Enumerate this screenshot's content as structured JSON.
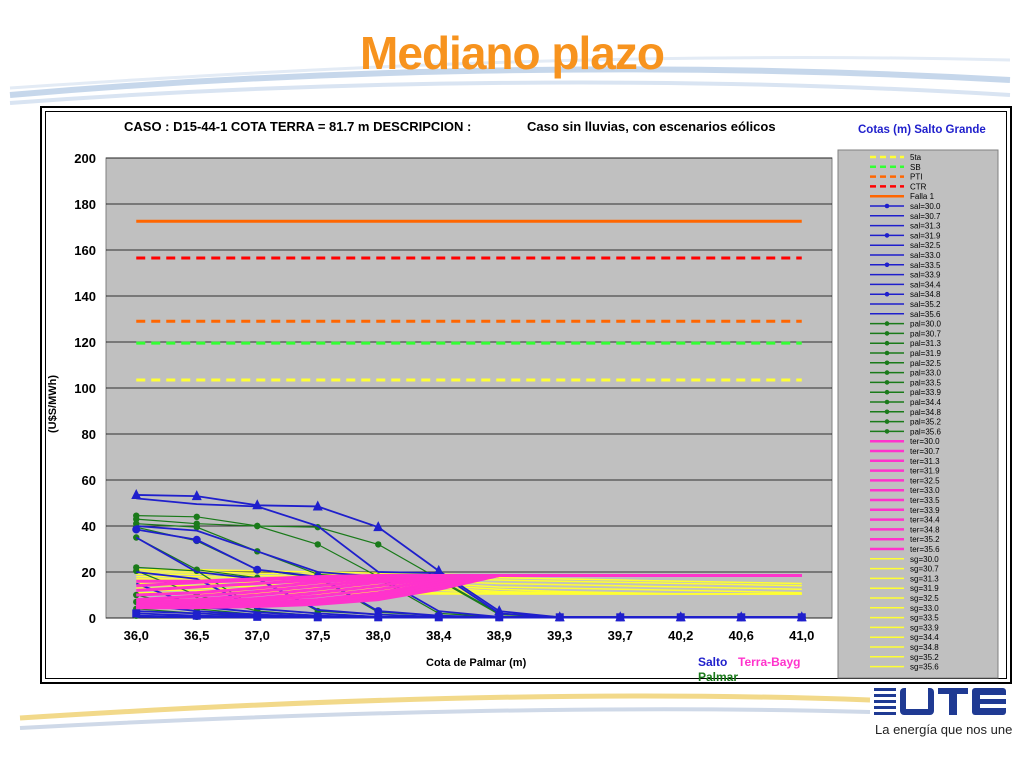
{
  "slide": {
    "title": "Mediano plazo",
    "tagline": "La energía que nos une",
    "logo_text": "UTE"
  },
  "colors": {
    "title": "#f7931e",
    "plot_bg": "#c0c0c0",
    "legend_bg": "#c0c0c0",
    "salto": "#1f1fcc",
    "palmar": "#1a7a1a",
    "terra": "#ff33cc",
    "sg": "#ffff33"
  },
  "chart_data": {
    "type": "line",
    "title_left": "CASO : D15-44-1 COTA TERRA = 81.7 m  DESCRIPCION :",
    "title_right": "Caso sin lluvias, con escenarios eólicos",
    "xlabel": "Cota de Palmar (m)",
    "ylabel": "(U$S/MWh)",
    "ylim": [
      0,
      200
    ],
    "yticks": [
      0,
      20,
      40,
      60,
      80,
      100,
      120,
      140,
      160,
      180,
      200
    ],
    "grid": true,
    "categories": [
      "36,0",
      "36,5",
      "37,0",
      "37,5",
      "38,0",
      "38,4",
      "38,9",
      "39,3",
      "39,7",
      "40,2",
      "40,6",
      "41,0"
    ],
    "legend_title": "Cotas (m) Salto Grande",
    "legend_position": "right",
    "footer_labels": {
      "salto": "Salto",
      "terra": "Terra-Bayg",
      "palmar": "Palmar"
    },
    "series": [
      {
        "name": "5ta",
        "group": "ref",
        "color": "#ffff33",
        "dash": true,
        "values": [
          103.5,
          103.5,
          103.5,
          103.5,
          103.5,
          103.5,
          103.5,
          103.5,
          103.5,
          103.5,
          103.5,
          103.5
        ]
      },
      {
        "name": "SB",
        "group": "ref",
        "color": "#33ff33",
        "dash": true,
        "values": [
          119.5,
          119.5,
          119.5,
          119.5,
          119.5,
          119.5,
          119.5,
          119.5,
          119.5,
          119.5,
          119.5,
          119.5
        ]
      },
      {
        "name": "PTI",
        "group": "ref",
        "color": "#ff6600",
        "dash": true,
        "values": [
          129,
          129,
          129,
          129,
          129,
          129,
          129,
          129,
          129,
          129,
          129,
          129
        ]
      },
      {
        "name": "CTR",
        "group": "ref",
        "color": "#ff0000",
        "dash": true,
        "values": [
          156.5,
          156.5,
          156.5,
          156.5,
          156.5,
          156.5,
          156.5,
          156.5,
          156.5,
          156.5,
          156.5,
          156.5
        ]
      },
      {
        "name": "Falla 1",
        "group": "ref",
        "color": "#ff6600",
        "dash": false,
        "values": [
          172.5,
          172.5,
          172.5,
          172.5,
          172.5,
          172.5,
          172.5,
          172.5,
          172.5,
          172.5,
          172.5,
          172.5
        ]
      },
      {
        "name": "sal=30.0",
        "group": "salto",
        "marker": "triangle",
        "values": [
          53.5,
          53,
          49,
          48.5,
          39.5,
          20.5,
          3,
          0.3,
          0.3,
          0.3,
          0.3,
          0.3
        ]
      },
      {
        "name": "sal=30.7",
        "group": "salto",
        "values": [
          52,
          49.5,
          48.5,
          40,
          20,
          19.5,
          2,
          0.3,
          0.3,
          0.3,
          0.3,
          0.3
        ]
      },
      {
        "name": "sal=31.3",
        "group": "salto",
        "values": [
          40,
          38,
          29,
          20,
          18,
          3,
          0.5,
          0.3,
          0.3,
          0.3,
          0.3,
          0.3
        ]
      },
      {
        "name": "sal=31.9",
        "group": "salto",
        "marker": "circle",
        "values": [
          38.5,
          34,
          21,
          18,
          3,
          1,
          0.3,
          0.3,
          0.3,
          0.3,
          0.3,
          0.3
        ]
      },
      {
        "name": "sal=32.5",
        "group": "salto",
        "values": [
          35,
          20,
          17,
          3.5,
          1.5,
          0.5,
          0.3,
          0.3,
          0.3,
          0.3,
          0.3,
          0.3
        ]
      },
      {
        "name": "sal=33.0",
        "group": "salto",
        "values": [
          20,
          17,
          4,
          2,
          0.5,
          0.3,
          0.3,
          0.3,
          0.3,
          0.3,
          0.3,
          0.3
        ]
      },
      {
        "name": "sal=33.5",
        "group": "salto",
        "marker": "plus",
        "values": [
          15,
          5,
          2.5,
          1,
          0.3,
          0.3,
          0.3,
          0.3,
          0.3,
          0.3,
          0.3,
          0.3
        ]
      },
      {
        "name": "sal=33.9",
        "group": "salto",
        "values": [
          6,
          3,
          1.5,
          0.5,
          0.3,
          0.3,
          0.3,
          0.3,
          0.3,
          0.3,
          0.3,
          0.3
        ]
      },
      {
        "name": "sal=34.4",
        "group": "salto",
        "values": [
          3,
          2,
          1,
          0.3,
          0.3,
          0.3,
          0.3,
          0.3,
          0.3,
          0.3,
          0.3,
          0.3
        ]
      },
      {
        "name": "sal=34.8",
        "group": "salto",
        "marker": "square",
        "values": [
          2,
          1,
          0.5,
          0.3,
          0.3,
          0.3,
          0.3,
          0.3,
          0.3,
          0.3,
          0.3,
          0.3
        ]
      },
      {
        "name": "sal=35.2",
        "group": "salto",
        "values": [
          1,
          0.5,
          0.3,
          0.3,
          0.3,
          0.3,
          0.3,
          0.3,
          0.3,
          0.3,
          0.3,
          0.3
        ]
      },
      {
        "name": "sal=35.6",
        "group": "salto",
        "values": [
          0.5,
          0.3,
          0.3,
          0.3,
          0.3,
          0.3,
          0.3,
          0.3,
          0.3,
          0.3,
          0.3,
          0.3
        ]
      },
      {
        "name": "pal=30.0",
        "group": "palmar",
        "values": [
          44.5,
          44,
          40,
          39.5,
          32,
          17,
          2,
          0.5,
          0.3,
          0.3,
          0.3,
          0.3
        ]
      },
      {
        "name": "pal=30.7",
        "group": "palmar",
        "values": [
          43,
          41,
          40,
          32,
          18,
          16.5,
          1.5,
          0.3,
          0.3,
          0.3,
          0.3,
          0.3
        ]
      },
      {
        "name": "pal=31.3",
        "group": "palmar",
        "values": [
          41,
          39.5,
          29,
          19,
          17,
          2,
          0.5,
          0.3,
          0.3,
          0.3,
          0.3,
          0.3
        ]
      },
      {
        "name": "pal=31.9",
        "group": "palmar",
        "values": [
          39.5,
          33.5,
          21,
          17.5,
          2.5,
          1,
          0.3,
          0.3,
          0.3,
          0.3,
          0.3,
          0.3
        ]
      },
      {
        "name": "pal=32.5",
        "group": "palmar",
        "values": [
          35,
          21,
          17.5,
          3,
          1.5,
          0.5,
          0.3,
          0.3,
          0.3,
          0.3,
          0.3,
          0.3
        ]
      },
      {
        "name": "pal=33.0",
        "group": "palmar",
        "values": [
          22,
          20.5,
          4,
          2,
          0.5,
          0.3,
          0.3,
          0.3,
          0.3,
          0.3,
          0.3,
          0.3
        ]
      },
      {
        "name": "pal=33.5",
        "group": "palmar",
        "values": [
          20.5,
          10,
          3,
          1,
          0.3,
          0.3,
          0.3,
          0.3,
          0.3,
          0.3,
          0.3,
          0.3
        ]
      },
      {
        "name": "pal=33.9",
        "group": "palmar",
        "values": [
          10,
          4,
          1.5,
          0.5,
          0.3,
          0.3,
          0.3,
          0.3,
          0.3,
          0.3,
          0.3,
          0.3
        ]
      },
      {
        "name": "pal=34.4",
        "group": "palmar",
        "values": [
          7,
          3,
          1,
          0.3,
          0.3,
          0.3,
          0.3,
          0.3,
          0.3,
          0.3,
          0.3,
          0.3
        ]
      },
      {
        "name": "pal=34.8",
        "group": "palmar",
        "values": [
          4,
          2,
          0.5,
          0.3,
          0.3,
          0.3,
          0.3,
          0.3,
          0.3,
          0.3,
          0.3,
          0.3
        ]
      },
      {
        "name": "pal=35.2",
        "group": "palmar",
        "values": [
          2,
          1,
          0.3,
          0.3,
          0.3,
          0.3,
          0.3,
          0.3,
          0.3,
          0.3,
          0.3,
          0.3
        ]
      },
      {
        "name": "pal=35.6",
        "group": "palmar",
        "values": [
          1,
          0.5,
          0.3,
          0.3,
          0.3,
          0.3,
          0.3,
          0.3,
          0.3,
          0.3,
          0.3,
          0.3
        ]
      },
      {
        "name": "ter=30.0",
        "group": "terra",
        "values": [
          16,
          16,
          17,
          18,
          18.5,
          18.5,
          18.5,
          18.5,
          18.5,
          18.5,
          18.5,
          18.5
        ]
      },
      {
        "name": "ter=30.7",
        "group": "terra",
        "values": [
          14,
          15.5,
          16.5,
          17.5,
          18.5,
          18.5,
          18.5,
          18.5,
          18.5,
          18.5,
          18.5,
          18.5
        ]
      },
      {
        "name": "ter=31.3",
        "group": "terra",
        "values": [
          12,
          13.5,
          15,
          16.5,
          18,
          18.5,
          18.5,
          18.5,
          18.5,
          18.5,
          18.5,
          18.5
        ]
      },
      {
        "name": "ter=31.9",
        "group": "terra",
        "values": [
          10,
          11,
          13,
          15.5,
          17.5,
          18.5,
          18.5,
          18.5,
          18.5,
          18.5,
          18.5,
          18.5
        ]
      },
      {
        "name": "ter=32.5",
        "group": "terra",
        "values": [
          8,
          9.5,
          11.5,
          14,
          16.5,
          18.5,
          18.5,
          18.5,
          18.5,
          18.5,
          18.5,
          18.5
        ]
      },
      {
        "name": "ter=33.0",
        "group": "terra",
        "values": [
          7,
          8,
          10,
          12.5,
          15.5,
          18,
          18.5,
          18.5,
          18.5,
          18.5,
          18.5,
          18.5
        ]
      },
      {
        "name": "ter=33.5",
        "group": "terra",
        "values": [
          6,
          7,
          8.5,
          11,
          14,
          17.5,
          18.5,
          18.5,
          18.5,
          18.5,
          18.5,
          18.5
        ]
      },
      {
        "name": "ter=33.9",
        "group": "terra",
        "values": [
          5.5,
          6,
          7.5,
          9.5,
          12.5,
          16.5,
          18.5,
          18.5,
          18.5,
          18.5,
          18.5,
          18.5
        ]
      },
      {
        "name": "ter=34.4",
        "group": "terra",
        "values": [
          5,
          5.5,
          6.5,
          8,
          11,
          15.5,
          18.5,
          18.5,
          18.5,
          18.5,
          18.5,
          18.5
        ]
      },
      {
        "name": "ter=34.8",
        "group": "terra",
        "values": [
          4.5,
          5,
          6,
          7.5,
          10,
          14.5,
          18.5,
          18.5,
          18.5,
          18.5,
          18.5,
          18.5
        ]
      },
      {
        "name": "ter=35.2",
        "group": "terra",
        "values": [
          4.5,
          4.5,
          5.5,
          7,
          9,
          13.5,
          18.5,
          18.5,
          18.5,
          18.5,
          18.5,
          18.5
        ]
      },
      {
        "name": "ter=35.6",
        "group": "terra",
        "values": [
          4.5,
          4.5,
          5,
          6,
          8,
          12.5,
          18.5,
          18.5,
          18.5,
          18.5,
          18.5,
          18.5
        ]
      },
      {
        "name": "sg=30.0",
        "group": "sg",
        "values": [
          21,
          21,
          20.5,
          20,
          19.5,
          19,
          18.5,
          18.5,
          18.5,
          18.5,
          18.5,
          18.5
        ]
      },
      {
        "name": "sg=30.7",
        "group": "sg",
        "values": [
          20,
          20,
          19.5,
          19,
          18.5,
          18,
          17.5,
          17,
          16.5,
          16,
          15.5,
          15
        ]
      },
      {
        "name": "sg=31.3",
        "group": "sg",
        "values": [
          19,
          19,
          18.5,
          18,
          17.5,
          17,
          16.5,
          16,
          15.5,
          15,
          14.5,
          14
        ]
      },
      {
        "name": "sg=31.9",
        "group": "sg",
        "values": [
          18,
          18,
          17.5,
          17,
          16.5,
          16,
          15,
          14.5,
          14,
          13.5,
          13,
          12.5
        ]
      },
      {
        "name": "sg=32.5",
        "group": "sg",
        "values": [
          17,
          17,
          16.5,
          16,
          15.5,
          15,
          13.5,
          13,
          12.5,
          12,
          11.5,
          11
        ]
      },
      {
        "name": "sg=33.0",
        "group": "sg",
        "values": [
          16,
          16,
          15.5,
          15,
          14.5,
          14,
          12.5,
          11.5,
          11,
          10.5,
          10.5,
          10.5
        ]
      },
      {
        "name": "sg=33.5",
        "group": "sg",
        "values": [
          15,
          15,
          14.5,
          14,
          13.5,
          13,
          11.5,
          11,
          10.5,
          10.5,
          10.5,
          10.5
        ]
      },
      {
        "name": "sg=33.9",
        "group": "sg",
        "values": [
          14,
          14,
          13.5,
          13,
          12.5,
          12,
          11,
          10.5,
          10.5,
          10.5,
          10.5,
          10.5
        ]
      },
      {
        "name": "sg=34.4",
        "group": "sg",
        "values": [
          13,
          13,
          12.5,
          12,
          11.5,
          11,
          10.5,
          10.5,
          10.5,
          10.5,
          10.5,
          10.5
        ]
      },
      {
        "name": "sg=34.8",
        "group": "sg",
        "values": [
          12,
          12,
          11.5,
          11,
          11,
          10.5,
          10.5,
          10.5,
          10.5,
          10.5,
          10.5,
          10.5
        ]
      },
      {
        "name": "sg=35.2",
        "group": "sg",
        "values": [
          11,
          11,
          11,
          10.5,
          10.5,
          10.5,
          10.5,
          10.5,
          10.5,
          10.5,
          10.5,
          10.5
        ]
      },
      {
        "name": "sg=35.6",
        "group": "sg",
        "values": [
          10.5,
          10.5,
          10.5,
          10.5,
          10.5,
          10.5,
          10.5,
          10.5,
          10.5,
          10.5,
          10.5,
          10.5
        ]
      }
    ]
  }
}
